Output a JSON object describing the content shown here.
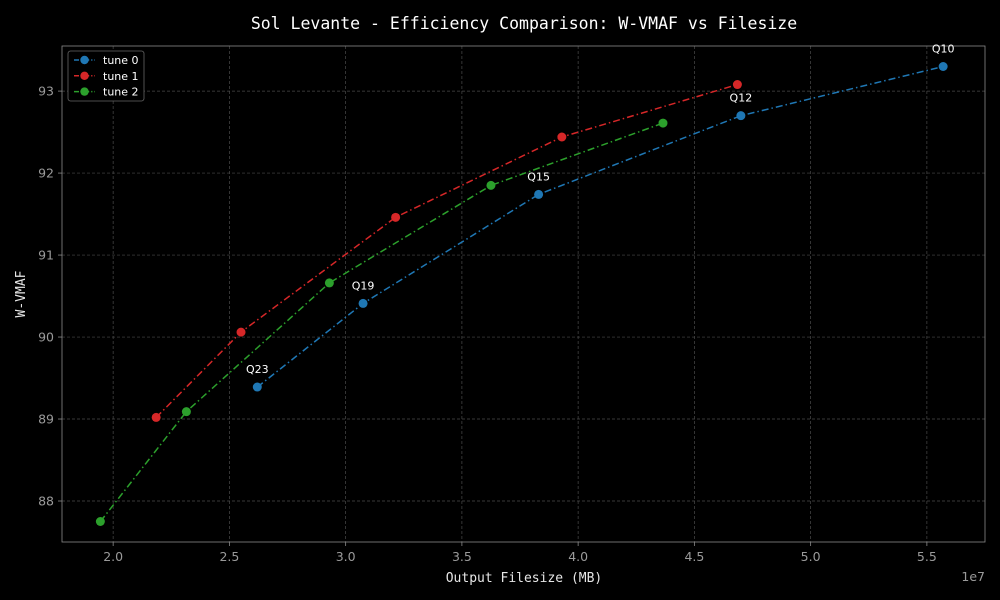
{
  "chart_data": {
    "type": "line",
    "title": "Sol Levante - Efficiency Comparison: W-VMAF vs Filesize",
    "xlabel": "Output Filesize (MB)",
    "ylabel": "W-VMAF",
    "x_offset_label": "1e7",
    "xlim": [
      17800000,
      57500000
    ],
    "ylim": [
      87.5,
      93.55
    ],
    "x_ticks": [
      20000000,
      25000000,
      30000000,
      35000000,
      40000000,
      45000000,
      50000000,
      55000000
    ],
    "x_tick_labels": [
      "2.0",
      "2.5",
      "3.0",
      "3.5",
      "4.0",
      "4.5",
      "5.0",
      "5.5"
    ],
    "y_ticks": [
      88,
      89,
      90,
      91,
      92,
      93
    ],
    "y_tick_labels": [
      "88",
      "89",
      "90",
      "91",
      "92",
      "93"
    ],
    "grid": true,
    "legend_position": "top-left",
    "series": [
      {
        "name": "tune 0",
        "color": "#1f77b4",
        "x": [
          26200000,
          30750000,
          38300000,
          47000000,
          55700000
        ],
        "y": [
          89.39,
          90.41,
          91.74,
          92.7,
          93.3
        ],
        "point_labels": [
          "Q23",
          "Q19",
          "Q15",
          "Q12",
          "Q10"
        ]
      },
      {
        "name": "tune 1",
        "color": "#d62728",
        "x": [
          21850000,
          25500000,
          32150000,
          39300000,
          46850000
        ],
        "y": [
          89.02,
          90.06,
          91.46,
          92.44,
          93.08
        ],
        "point_labels": []
      },
      {
        "name": "tune 2",
        "color": "#2ca02c",
        "x": [
          19450000,
          23150000,
          29300000,
          36250000,
          43650000
        ],
        "y": [
          87.75,
          89.09,
          90.66,
          91.85,
          92.61
        ],
        "point_labels": []
      }
    ]
  }
}
